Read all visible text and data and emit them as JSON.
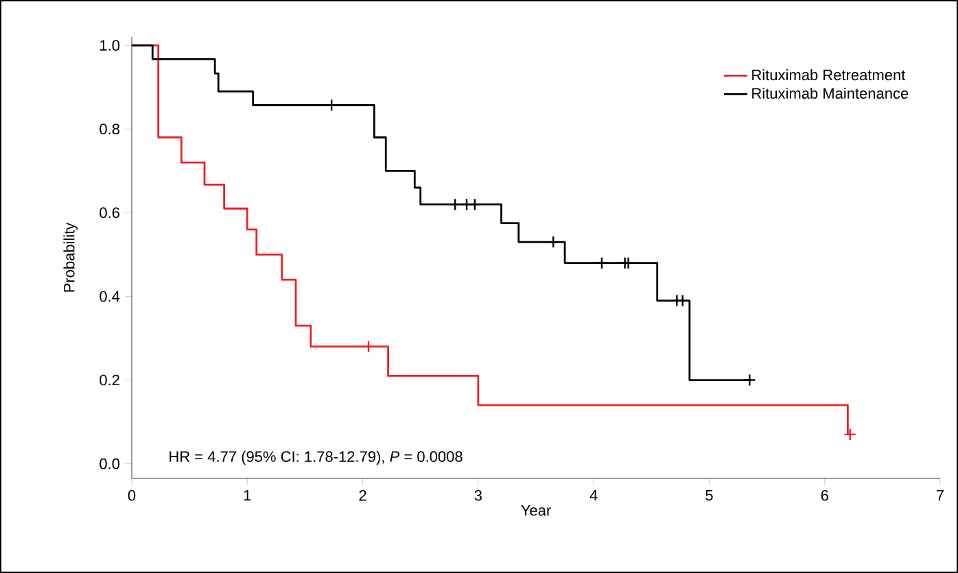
{
  "chart_data": {
    "type": "step",
    "xlabel": "Year",
    "ylabel": "Probability",
    "xlim": [
      0,
      7
    ],
    "ylim": [
      -0.035,
      1.02
    ],
    "xticks": [
      0,
      1,
      2,
      3,
      4,
      5,
      6,
      7
    ],
    "yticks": [
      {
        "value": 0,
        "label": "0.0"
      },
      {
        "value": 0.2,
        "label": "0.2"
      },
      {
        "value": 0.4,
        "label": "0.4"
      },
      {
        "value": 0.6,
        "label": "0.6"
      },
      {
        "value": 0.8,
        "label": "0.8"
      },
      {
        "value": 1,
        "label": "1.0"
      }
    ],
    "legend": "top right",
    "grid": false,
    "line_style": "solid",
    "annotations": [
      {
        "text": "HR = 4.77 (95% CI: 1.78-12.79), *P* = 0.0008"
      }
    ],
    "series": [
      {
        "name": "Rituximab Retreatment",
        "color": "#ee2024",
        "x": [
          0,
          0.23,
          0.43,
          0.63,
          0.8,
          1.0,
          1.08,
          1.3,
          1.42,
          1.55,
          2.22,
          3.0,
          6.2,
          6.22
        ],
        "values": [
          1.0,
          0.78,
          0.72,
          0.667,
          0.61,
          0.56,
          0.5,
          0.44,
          0.33,
          0.28,
          0.21,
          0.14,
          0.07,
          0.07
        ]
      },
      {
        "name": "Rituximab Maintenance",
        "color": "#000000",
        "x": [
          0,
          0.18,
          0.72,
          0.75,
          1.05,
          2.1,
          2.2,
          2.45,
          2.5,
          3.2,
          3.35,
          3.75,
          4.55,
          4.83,
          5.35
        ],
        "values": [
          1.0,
          0.967,
          0.933,
          0.89,
          0.857,
          0.78,
          0.7,
          0.66,
          0.62,
          0.575,
          0.53,
          0.48,
          0.39,
          0.2,
          0.2
        ]
      },
      {
        "type": "scatter",
        "marker": "cross",
        "color": "#ee2024",
        "x": [
          2.05,
          6.22
        ],
        "values": [
          0.28,
          0.07
        ]
      },
      {
        "type": "scatter",
        "marker": "cross",
        "color": "#000000",
        "x": [
          1.73,
          2.8,
          2.9,
          2.97,
          3.65,
          4.07,
          4.27,
          4.3,
          4.72,
          4.77,
          5.35
        ],
        "values": [
          0.857,
          0.62,
          0.62,
          0.62,
          0.53,
          0.48,
          0.48,
          0.48,
          0.39,
          0.39,
          0.2
        ]
      }
    ]
  }
}
